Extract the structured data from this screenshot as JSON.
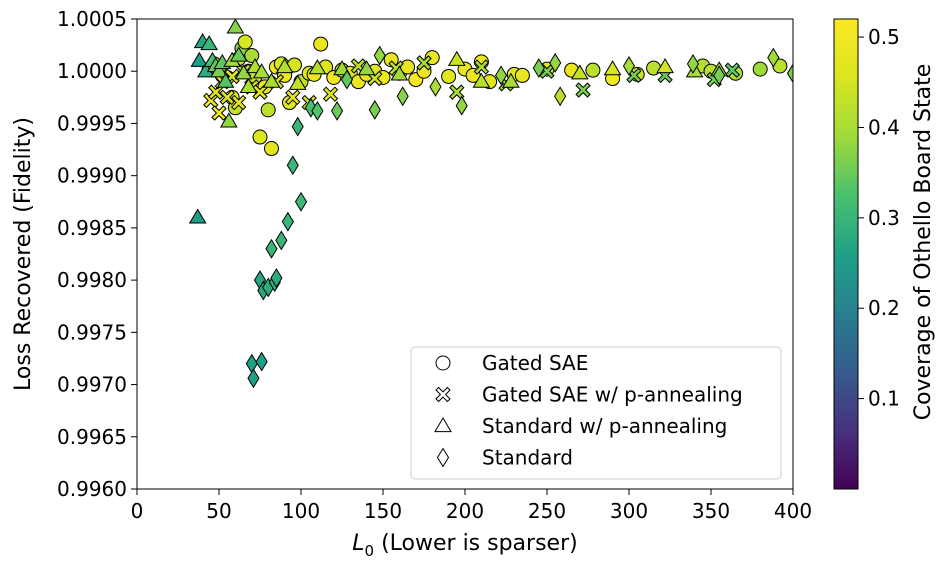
{
  "chart_data": {
    "type": "scatter",
    "xlabel_main": "L",
    "xlabel_sub": "0",
    "xlabel_rest": " (Lower is sparser)",
    "ylabel": "Loss Recovered (Fidelity)",
    "colorbar_label": "Coverage of Othello Board State",
    "xlim": [
      0,
      400
    ],
    "ylim": [
      0.996,
      1.0005
    ],
    "xticks": [
      "0",
      "50",
      "100",
      "150",
      "200",
      "250",
      "300",
      "350",
      "400"
    ],
    "yticks": [
      "0.9960",
      "0.9965",
      "0.9970",
      "0.9975",
      "0.9980",
      "0.9985",
      "0.9990",
      "0.9995",
      "1.0000",
      "1.0005"
    ],
    "colorbar_range": [
      0.0,
      0.52
    ],
    "colorbar_ticks": [
      "0.1",
      "0.2",
      "0.3",
      "0.4",
      "0.5"
    ],
    "colormap": "viridis",
    "legend_position": "lower-right",
    "series": [
      {
        "name": "Gated SAE",
        "marker": "circle",
        "points": [
          [
            44,
            1.00002,
            0.48
          ],
          [
            47,
            1.00007,
            0.5
          ],
          [
            50,
            1.0,
            0.46
          ],
          [
            52,
            0.99996,
            0.5
          ],
          [
            55,
            0.99994,
            0.48
          ],
          [
            58,
            0.99975,
            0.47
          ],
          [
            60,
            0.99965,
            0.43
          ],
          [
            62,
            1.00012,
            0.44
          ],
          [
            64,
            1.00022,
            0.38
          ],
          [
            66,
            1.00028,
            0.45
          ],
          [
            68,
            1.0,
            0.47
          ],
          [
            70,
            1.00015,
            0.4
          ],
          [
            72,
            0.99995,
            0.44
          ],
          [
            75,
            0.99937,
            0.46
          ],
          [
            78,
            0.99985,
            0.48
          ],
          [
            80,
            0.99963,
            0.42
          ],
          [
            82,
            0.99926,
            0.47
          ],
          [
            85,
            1.00004,
            0.5
          ],
          [
            88,
            1.00007,
            0.45
          ],
          [
            90,
            0.99996,
            0.48
          ],
          [
            93,
            0.9997,
            0.47
          ],
          [
            96,
            1.00006,
            0.45
          ],
          [
            100,
            0.9999,
            0.42
          ],
          [
            105,
            0.99998,
            0.46
          ],
          [
            108,
            0.99997,
            0.49
          ],
          [
            112,
            1.00026,
            0.48
          ],
          [
            115,
            1.00004,
            0.46
          ],
          [
            120,
            0.99994,
            0.5
          ],
          [
            125,
            1.00001,
            0.44
          ],
          [
            130,
            0.99998,
            0.47
          ],
          [
            135,
            0.9999,
            0.49
          ],
          [
            140,
            0.99997,
            0.48
          ],
          [
            145,
            1.0,
            0.47
          ],
          [
            150,
            0.99994,
            0.49
          ],
          [
            155,
            1.00011,
            0.48
          ],
          [
            160,
            0.99998,
            0.47
          ],
          [
            165,
            1.00004,
            0.48
          ],
          [
            170,
            0.99992,
            0.51
          ],
          [
            175,
            1.0,
            0.49
          ],
          [
            180,
            1.00013,
            0.48
          ],
          [
            190,
            0.99995,
            0.47
          ],
          [
            200,
            1.00002,
            0.48
          ],
          [
            205,
            0.99996,
            0.49
          ],
          [
            210,
            1.00009,
            0.48
          ],
          [
            215,
            0.9999,
            0.47
          ],
          [
            230,
            0.99997,
            0.47
          ],
          [
            235,
            0.99996,
            0.48
          ],
          [
            250,
            1.00002,
            0.47
          ],
          [
            265,
            1.00001,
            0.48
          ],
          [
            278,
            1.00001,
            0.42
          ],
          [
            290,
            0.99993,
            0.5
          ],
          [
            305,
            0.99997,
            0.44
          ],
          [
            315,
            1.00003,
            0.42
          ],
          [
            345,
            1.00005,
            0.41
          ],
          [
            350,
            1.0,
            0.42
          ],
          [
            365,
            0.99998,
            0.41
          ],
          [
            380,
            1.00002,
            0.39
          ],
          [
            392,
            1.00005,
            0.42
          ]
        ]
      },
      {
        "name": "Gated SAE w/ p-annealing",
        "marker": "cross",
        "points": [
          [
            45,
            0.99972,
            0.5
          ],
          [
            48,
            0.9998,
            0.47
          ],
          [
            50,
            0.9996,
            0.49
          ],
          [
            52,
            0.9999,
            0.48
          ],
          [
            55,
            0.99975,
            0.46
          ],
          [
            58,
            0.99995,
            0.45
          ],
          [
            62,
            0.9997,
            0.47
          ],
          [
            65,
            1.0,
            0.42
          ],
          [
            70,
            0.99985,
            0.44
          ],
          [
            75,
            0.9998,
            0.47
          ],
          [
            85,
            0.9999,
            0.45
          ],
          [
            95,
            0.99975,
            0.48
          ],
          [
            105,
            0.9997,
            0.44
          ],
          [
            118,
            0.99978,
            0.46
          ],
          [
            135,
            1.00005,
            0.42
          ],
          [
            145,
            0.99993,
            0.44
          ],
          [
            158,
            1.00003,
            0.42
          ],
          [
            175,
            1.00008,
            0.4
          ],
          [
            195,
            0.9998,
            0.4
          ],
          [
            210,
            1.00004,
            0.4
          ],
          [
            225,
            0.99988,
            0.38
          ],
          [
            250,
            1.0,
            0.36
          ],
          [
            272,
            0.99982,
            0.36
          ],
          [
            303,
            0.99996,
            0.36
          ],
          [
            322,
            0.99996,
            0.35
          ],
          [
            352,
            0.99992,
            0.36
          ],
          [
            363,
            1.00001,
            0.34
          ]
        ]
      },
      {
        "name": "Standard w/ p-annealing",
        "marker": "triangle",
        "points": [
          [
            37,
            0.9986,
            0.25
          ],
          [
            38,
            1.0001,
            0.25
          ],
          [
            40,
            1.00028,
            0.27
          ],
          [
            42,
            1.0,
            0.28
          ],
          [
            44,
            1.00026,
            0.3
          ],
          [
            46,
            1.0001,
            0.32
          ],
          [
            48,
            1.00005,
            0.35
          ],
          [
            50,
            1.0,
            0.36
          ],
          [
            52,
            1.00008,
            0.34
          ],
          [
            54,
            0.9999,
            0.33
          ],
          [
            56,
            0.99952,
            0.38
          ],
          [
            58,
            1.0001,
            0.39
          ],
          [
            60,
            1.00042,
            0.37
          ],
          [
            62,
            1.00015,
            0.35
          ],
          [
            65,
            0.99998,
            0.38
          ],
          [
            68,
            0.99985,
            0.4
          ],
          [
            72,
            1.00004,
            0.41
          ],
          [
            76,
            0.99999,
            0.4
          ],
          [
            82,
            0.9999,
            0.4
          ],
          [
            90,
            1.00004,
            0.41
          ],
          [
            98,
            0.99988,
            0.43
          ],
          [
            110,
            1.00003,
            0.41
          ],
          [
            125,
            1.00002,
            0.39
          ],
          [
            140,
            1.00002,
            0.38
          ],
          [
            160,
            0.99997,
            0.39
          ],
          [
            195,
            1.00011,
            0.44
          ],
          [
            210,
            0.9999,
            0.42
          ],
          [
            228,
            0.9999,
            0.4
          ],
          [
            270,
            0.99998,
            0.43
          ],
          [
            290,
            1.00002,
            0.45
          ],
          [
            322,
            1.00004,
            0.45
          ],
          [
            340,
            1.0,
            0.4
          ],
          [
            355,
            1.00001,
            0.39
          ]
        ]
      },
      {
        "name": "Standard",
        "marker": "diamond",
        "points": [
          [
            70,
            0.9972,
            0.26
          ],
          [
            71,
            0.99706,
            0.26
          ],
          [
            76,
            0.99722,
            0.26
          ],
          [
            75,
            0.998,
            0.27
          ],
          [
            77,
            0.9979,
            0.27
          ],
          [
            80,
            0.99793,
            0.28
          ],
          [
            82,
            0.9983,
            0.3
          ],
          [
            84,
            0.99798,
            0.28
          ],
          [
            85,
            0.99802,
            0.28
          ],
          [
            88,
            0.99838,
            0.3
          ],
          [
            92,
            0.99856,
            0.3
          ],
          [
            95,
            0.9991,
            0.3
          ],
          [
            98,
            0.99947,
            0.3
          ],
          [
            100,
            0.99875,
            0.31
          ],
          [
            106,
            0.99965,
            0.32
          ],
          [
            110,
            0.99962,
            0.33
          ],
          [
            122,
            0.99962,
            0.35
          ],
          [
            128,
            0.99992,
            0.34
          ],
          [
            145,
            0.99963,
            0.36
          ],
          [
            148,
            1.00015,
            0.38
          ],
          [
            162,
            0.99976,
            0.37
          ],
          [
            182,
            0.99985,
            0.4
          ],
          [
            198,
            0.99967,
            0.38
          ],
          [
            222,
            0.99996,
            0.38
          ],
          [
            245,
            1.00003,
            0.36
          ],
          [
            255,
            1.00008,
            0.38
          ],
          [
            258,
            0.99976,
            0.42
          ],
          [
            300,
            1.00005,
            0.4
          ],
          [
            339,
            1.00007,
            0.38
          ],
          [
            355,
            0.99996,
            0.36
          ],
          [
            388,
            1.00013,
            0.39
          ],
          [
            400,
            0.99998,
            0.36
          ]
        ]
      }
    ]
  }
}
